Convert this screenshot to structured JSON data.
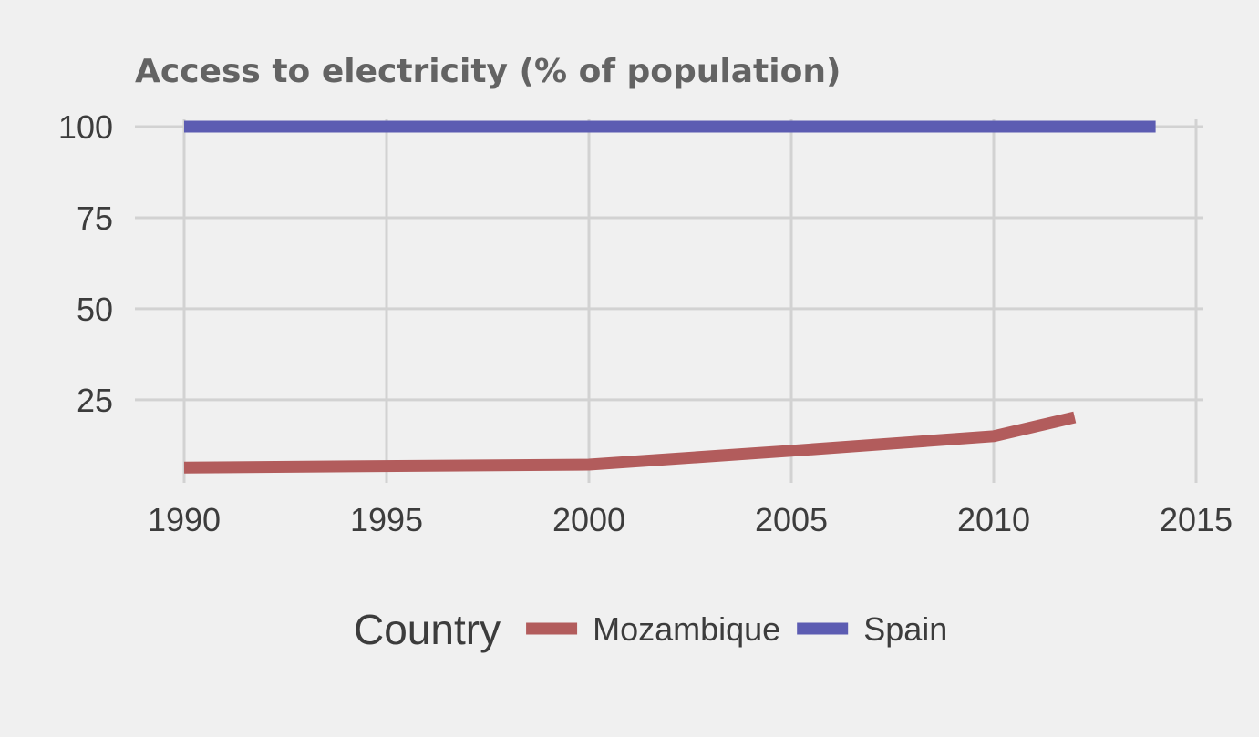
{
  "chart_data": {
    "type": "line",
    "title": "Access to electricity (% of population)",
    "xlabel": "",
    "ylabel": "",
    "xlim": [
      1990,
      2015
    ],
    "ylim": [
      2.2,
      102
    ],
    "x_ticks": [
      1990,
      1995,
      2000,
      2005,
      2010,
      2015
    ],
    "y_ticks": [
      25,
      50,
      75,
      100
    ],
    "grid": true,
    "legend": {
      "title": "Country",
      "placement": "bottom"
    },
    "series": [
      {
        "name": "Mozambique",
        "color": "#b25c5c",
        "x": [
          1990,
          2000,
          2005,
          2010,
          2012
        ],
        "y": [
          6.4,
          7.2,
          11.0,
          15.0,
          20.2
        ]
      },
      {
        "name": "Spain",
        "color": "#5c5cb2",
        "x": [
          1990,
          2014
        ],
        "y": [
          100,
          100
        ]
      }
    ]
  }
}
